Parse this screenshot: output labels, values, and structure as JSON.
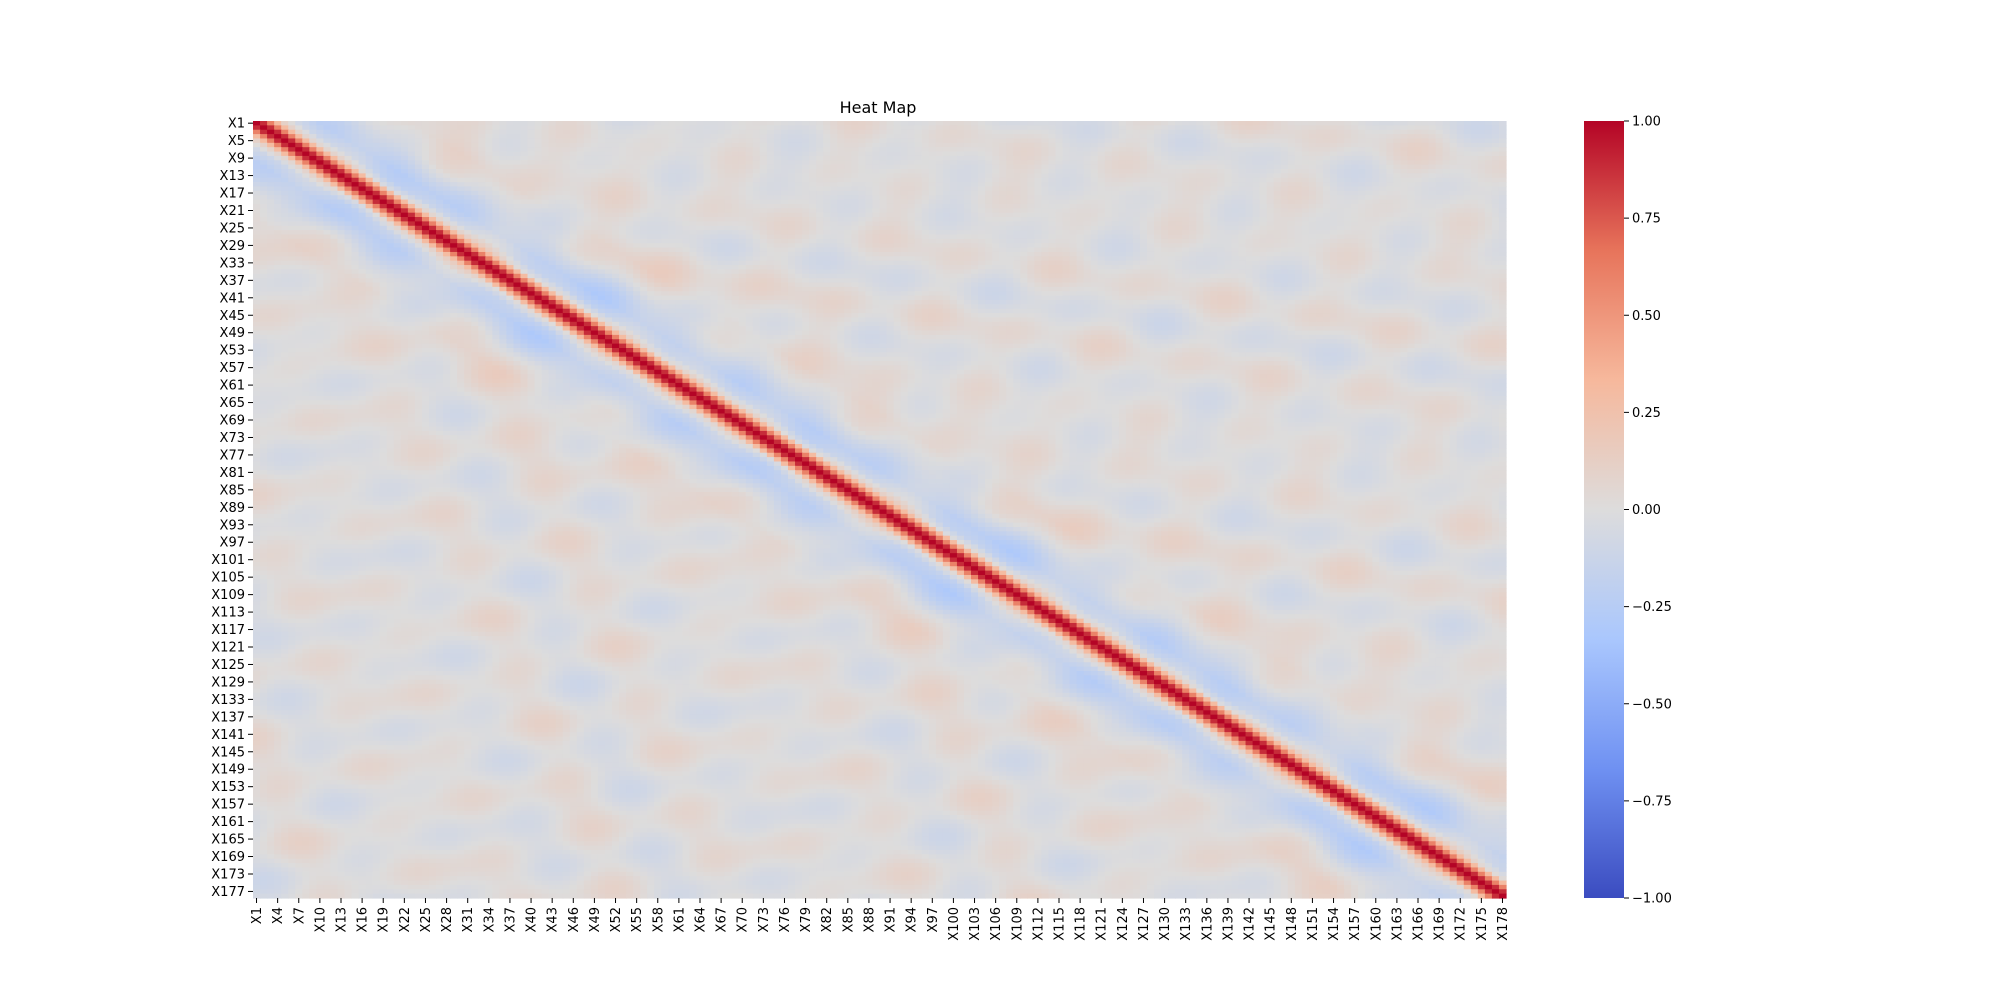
{
  "chart_data": {
    "type": "heatmap",
    "title": "Heat Map",
    "xlabel": "",
    "ylabel": "",
    "n_vars": 178,
    "var_prefix": "X",
    "x_tick_labels": [
      "X1",
      "X4",
      "X7",
      "X10",
      "X13",
      "X16",
      "X19",
      "X22",
      "X25",
      "X28",
      "X31",
      "X34",
      "X37",
      "X40",
      "X43",
      "X46",
      "X49",
      "X52",
      "X55",
      "X58",
      "X61",
      "X64",
      "X67",
      "X70",
      "X73",
      "X76",
      "X79",
      "X82",
      "X85",
      "X88",
      "X91",
      "X94",
      "X97",
      "X100",
      "X103",
      "X106",
      "X109",
      "X112",
      "X115",
      "X118",
      "X121",
      "X124",
      "X127",
      "X130",
      "X133",
      "X136",
      "X139",
      "X142",
      "X145",
      "X148",
      "X151",
      "X154",
      "X157",
      "X160",
      "X163",
      "X166",
      "X169",
      "X172",
      "X175",
      "X178"
    ],
    "y_tick_labels": [
      "X1",
      "X5",
      "X9",
      "X13",
      "X17",
      "X21",
      "X25",
      "X29",
      "X33",
      "X37",
      "X41",
      "X45",
      "X49",
      "X53",
      "X57",
      "X61",
      "X65",
      "X69",
      "X73",
      "X77",
      "X81",
      "X85",
      "X89",
      "X93",
      "X97",
      "X101",
      "X105",
      "X109",
      "X113",
      "X117",
      "X121",
      "X125",
      "X129",
      "X133",
      "X137",
      "X141",
      "X145",
      "X149",
      "X153",
      "X157",
      "X161",
      "X165",
      "X169",
      "X173",
      "X177"
    ],
    "x_tick_step": 3,
    "y_tick_step": 4,
    "diagonal_value": 1.0,
    "correlation_structure": {
      "description_of_lags": "autocorrelation by lag |i-j|",
      "lag_profile": [
        [
          0,
          1.0
        ],
        [
          1,
          0.88
        ],
        [
          2,
          0.6
        ],
        [
          3,
          0.3
        ],
        [
          4,
          0.05
        ],
        [
          6,
          -0.12
        ],
        [
          9,
          -0.2
        ],
        [
          12,
          -0.14
        ],
        [
          16,
          -0.03
        ],
        [
          22,
          0.05
        ],
        [
          30,
          0.02
        ],
        [
          40,
          0.0
        ]
      ]
    },
    "colorbar": {
      "vmin": -1.0,
      "vmax": 1.0,
      "ticks": [
        1.0,
        0.75,
        0.5,
        0.25,
        0.0,
        -0.25,
        -0.5,
        -0.75,
        -1.0
      ],
      "tick_labels": [
        "1.00",
        "0.75",
        "0.50",
        "0.25",
        "0.00",
        "−0.25",
        "−0.50",
        "−0.75",
        "−1.00"
      ],
      "colormap": "coolwarm",
      "colormap_stops": [
        "#3b4cc0",
        "#6f91f2",
        "#aac7fd",
        "#dddcdc",
        "#f6b89c",
        "#e7745b",
        "#b40426"
      ]
    },
    "grid": false,
    "legend": "none"
  }
}
